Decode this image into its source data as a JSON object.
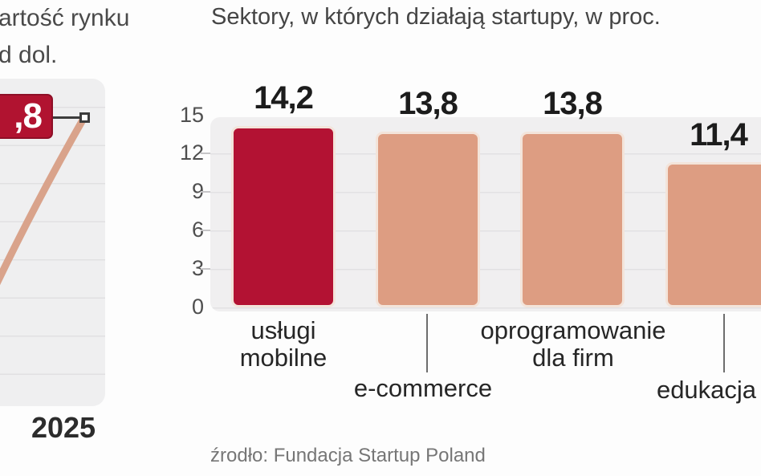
{
  "chart_data": [
    {
      "type": "line",
      "title_visible_lines": [
        "artość rynku",
        "d dol."
      ],
      "x_tick_labels": [
        "2025"
      ],
      "callout_label": ",8",
      "callout_color": "#b11330",
      "callout_border": "#8e0f27",
      "line_color": "#d9a38b"
    },
    {
      "type": "bar",
      "title": "Sektory, w których działają startupy, w proc.",
      "categories": [
        "usługi mobilne",
        "e-commerce",
        "oprogramowanie dla firm",
        "edukacja"
      ],
      "values": [
        14.2,
        13.8,
        13.8,
        11.4
      ],
      "value_labels": [
        "14,2",
        "13,8",
        "13,8",
        "11,4"
      ],
      "category_label_lines": [
        [
          "usługi",
          "mobilne"
        ],
        [
          "e-commerce"
        ],
        [
          "oprogramowanie",
          "dla firm"
        ],
        [
          "edukacja"
        ]
      ],
      "yticks": [
        "15",
        "12",
        "9",
        "6",
        "3",
        "0"
      ],
      "ylim": [
        0,
        15
      ],
      "grid": true,
      "bar_colors": [
        "#b31233",
        "#dd9d82",
        "#dd9d82",
        "#dd9d82"
      ],
      "highlight_color": "#b31233",
      "base_color": "#dd9d82",
      "source": "źrodło: Fundacja Startup Poland"
    }
  ]
}
